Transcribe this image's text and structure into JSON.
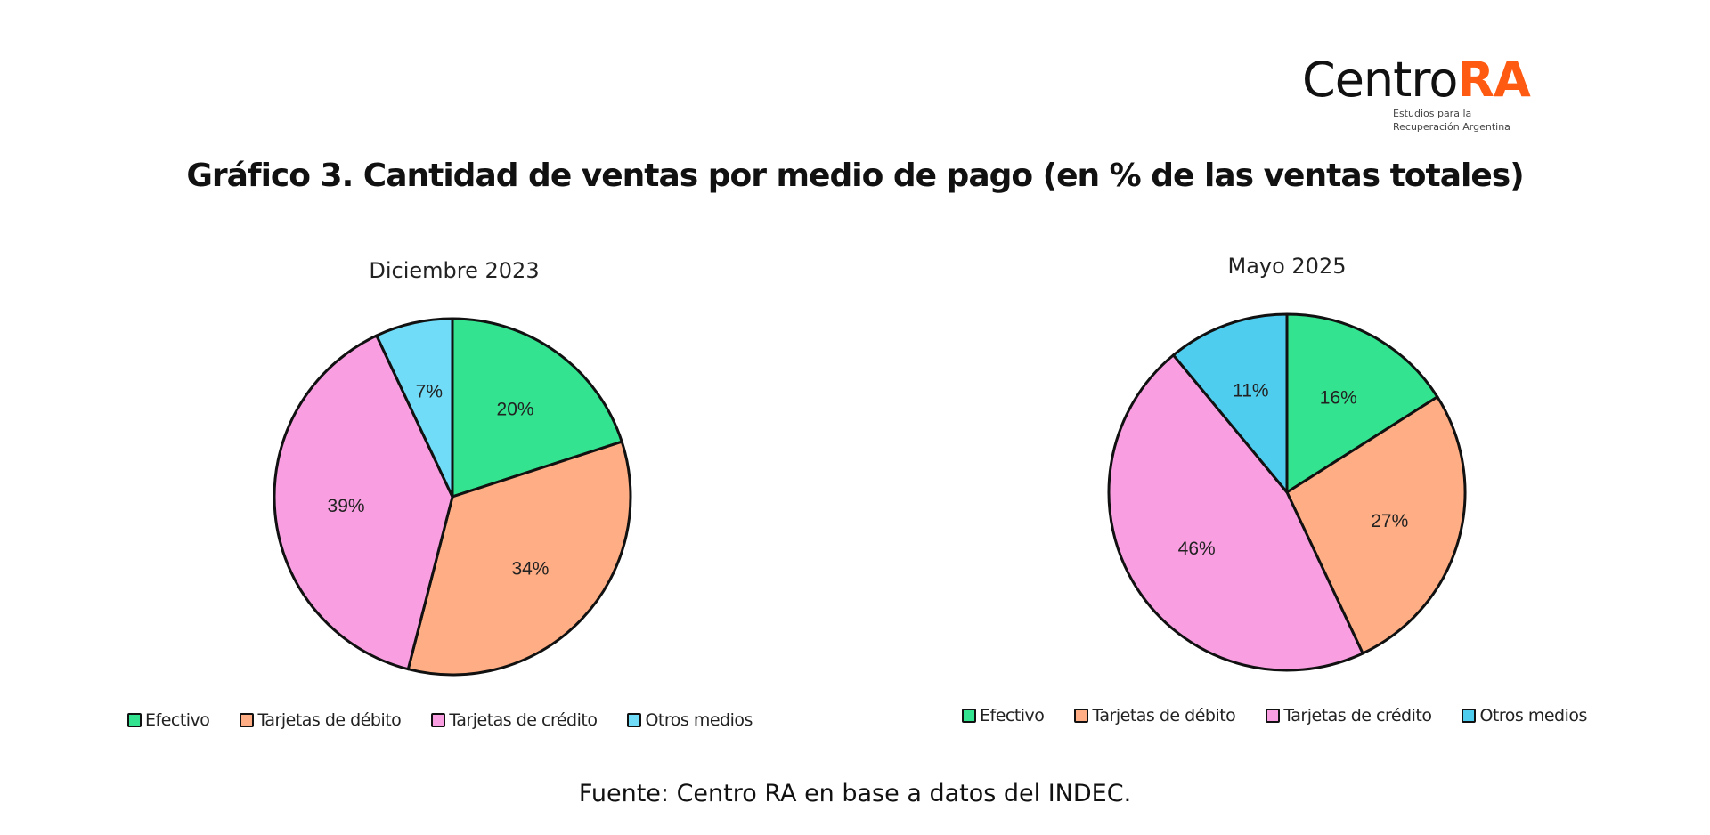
{
  "logo": {
    "name_part1": "Centro",
    "name_part2": "RA",
    "subtitle_line1": "Estudios para la",
    "subtitle_line2": "Recuperación Argentina",
    "accent_color": "#ff5a12"
  },
  "title": "Gráfico 3. Cantidad de ventas por medio de pago (en % de las ventas totales)",
  "footer": "Fuente: Centro RA en base a datos del INDEC.",
  "legend": [
    {
      "label": "Efectivo",
      "color": "#33e38f"
    },
    {
      "label": "Tarjetas de débito",
      "color": "#ffad84"
    },
    {
      "label": "Tarjetas de crédito",
      "color": "#f99fe1"
    },
    {
      "label": "Otros medios",
      "color": "#5fd7f2"
    }
  ],
  "chart_data": [
    {
      "type": "pie",
      "title": "Diciembre 2023",
      "categories": [
        "Efectivo",
        "Tarjetas de débito",
        "Tarjetas de crédito",
        "Otros medios"
      ],
      "values": [
        20,
        34,
        39,
        7
      ],
      "labels": [
        "20%",
        "34%",
        "39%",
        "7%"
      ],
      "colors": [
        "#33e38f",
        "#ffad84",
        "#f99fe1",
        "#70dcf7"
      ],
      "start_angle": "12 o'clock, clockwise",
      "legend_position": "bottom"
    },
    {
      "type": "pie",
      "title": "Mayo 2025",
      "categories": [
        "Efectivo",
        "Tarjetas de débito",
        "Tarjetas de crédito",
        "Otros medios"
      ],
      "values": [
        16,
        27,
        46,
        11
      ],
      "labels": [
        "16%",
        "27%",
        "46%",
        "11%"
      ],
      "colors": [
        "#33e38f",
        "#ffad84",
        "#f99fe1",
        "#4fcdef"
      ],
      "start_angle": "12 o'clock, clockwise",
      "legend_position": "bottom"
    }
  ]
}
